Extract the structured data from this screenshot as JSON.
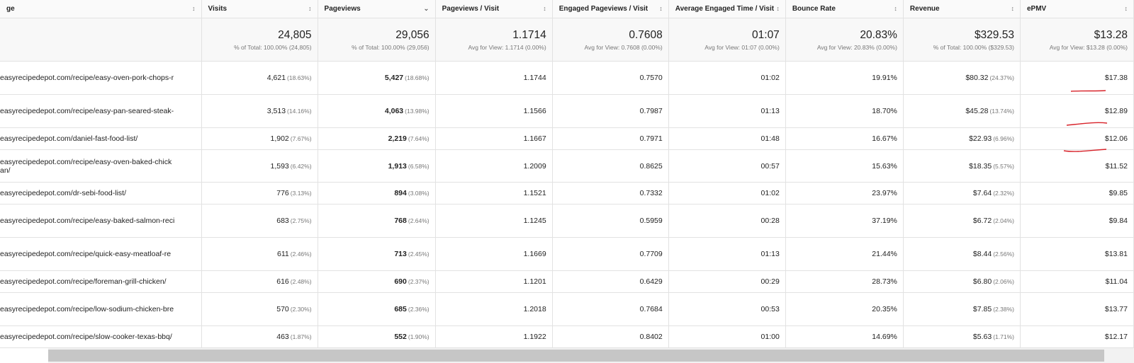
{
  "columns": [
    {
      "label": "ge",
      "sort": "unsorted"
    },
    {
      "label": "Visits",
      "sort": "unsorted"
    },
    {
      "label": "Pageviews",
      "sort": "descending"
    },
    {
      "label": "Pageviews / Visit",
      "sort": "unsorted"
    },
    {
      "label": "Engaged Pageviews / Visit",
      "sort": "unsorted"
    },
    {
      "label": "Average Engaged Time / Visit",
      "sort": "unsorted"
    },
    {
      "label": "Bounce Rate",
      "sort": "unsorted"
    },
    {
      "label": "Revenue",
      "sort": "unsorted"
    },
    {
      "label": "ePMV",
      "sort": "unsorted"
    }
  ],
  "summary": [
    {
      "value": "24,805",
      "sub": "% of Total: 100.00% (24,805)"
    },
    {
      "value": "29,056",
      "sub": "% of Total: 100.00% (29,056)"
    },
    {
      "value": "1.1714",
      "sub": "Avg for View: 1.1714 (0.00%)"
    },
    {
      "value": "0.7608",
      "sub": "Avg for View: 0.7608 (0.00%)"
    },
    {
      "value": "01:07",
      "sub": "Avg for View: 01:07 (0.00%)"
    },
    {
      "value": "20.83%",
      "sub": "Avg for View: 20.83% (0.00%)"
    },
    {
      "value": "$329.53",
      "sub": "% of Total: 100.00% ($329.53)"
    },
    {
      "value": "$13.28",
      "sub": "Avg for View: $13.28 (0.00%)"
    }
  ],
  "rows": [
    {
      "page": "easyrecipedepot.com/recipe/easy-oven-pork-chops-r",
      "visits": "4,621",
      "visits_pct": "(18.63%)",
      "pageviews": "5,427",
      "pageviews_pct": "(18.68%)",
      "ppv": "1.1744",
      "eppv": "0.7570",
      "time": "01:02",
      "bounce": "19.91%",
      "revenue": "$80.32",
      "revenue_pct": "(24.37%)",
      "epmv": "$17.38"
    },
    {
      "page": "easyrecipedepot.com/recipe/easy-pan-seared-steak-",
      "visits": "3,513",
      "visits_pct": "(14.16%)",
      "pageviews": "4,063",
      "pageviews_pct": "(13.98%)",
      "ppv": "1.1566",
      "eppv": "0.7987",
      "time": "01:13",
      "bounce": "18.70%",
      "revenue": "$45.28",
      "revenue_pct": "(13.74%)",
      "epmv": "$12.89"
    },
    {
      "page": "easyrecipedepot.com/daniel-fast-food-list/",
      "visits": "1,902",
      "visits_pct": "(7.67%)",
      "pageviews": "2,219",
      "pageviews_pct": "(7.64%)",
      "ppv": "1.1667",
      "eppv": "0.7971",
      "time": "01:48",
      "bounce": "16.67%",
      "revenue": "$22.93",
      "revenue_pct": "(6.96%)",
      "epmv": "$12.06"
    },
    {
      "page": "easyrecipedepot.com/recipe/easy-oven-baked-chick\nan/",
      "visits": "1,593",
      "visits_pct": "(6.42%)",
      "pageviews": "1,913",
      "pageviews_pct": "(6.58%)",
      "ppv": "1.2009",
      "eppv": "0.8625",
      "time": "00:57",
      "bounce": "15.63%",
      "revenue": "$18.35",
      "revenue_pct": "(5.57%)",
      "epmv": "$11.52"
    },
    {
      "page": "easyrecipedepot.com/dr-sebi-food-list/",
      "visits": "776",
      "visits_pct": "(3.13%)",
      "pageviews": "894",
      "pageviews_pct": "(3.08%)",
      "ppv": "1.1521",
      "eppv": "0.7332",
      "time": "01:02",
      "bounce": "23.97%",
      "revenue": "$7.64",
      "revenue_pct": "(2.32%)",
      "epmv": "$9.85"
    },
    {
      "page": "easyrecipedepot.com/recipe/easy-baked-salmon-reci",
      "visits": "683",
      "visits_pct": "(2.75%)",
      "pageviews": "768",
      "pageviews_pct": "(2.64%)",
      "ppv": "1.1245",
      "eppv": "0.5959",
      "time": "00:28",
      "bounce": "37.19%",
      "revenue": "$6.72",
      "revenue_pct": "(2.04%)",
      "epmv": "$9.84"
    },
    {
      "page": "easyrecipedepot.com/recipe/quick-easy-meatloaf-re",
      "visits": "611",
      "visits_pct": "(2.46%)",
      "pageviews": "713",
      "pageviews_pct": "(2.45%)",
      "ppv": "1.1669",
      "eppv": "0.7709",
      "time": "01:13",
      "bounce": "21.44%",
      "revenue": "$8.44",
      "revenue_pct": "(2.56%)",
      "epmv": "$13.81"
    },
    {
      "page": "easyrecipedepot.com/recipe/foreman-grill-chicken/",
      "visits": "616",
      "visits_pct": "(2.48%)",
      "pageviews": "690",
      "pageviews_pct": "(2.37%)",
      "ppv": "1.1201",
      "eppv": "0.6429",
      "time": "00:29",
      "bounce": "28.73%",
      "revenue": "$6.80",
      "revenue_pct": "(2.06%)",
      "epmv": "$11.04"
    },
    {
      "page": "easyrecipedepot.com/recipe/low-sodium-chicken-bre",
      "visits": "570",
      "visits_pct": "(2.30%)",
      "pageviews": "685",
      "pageviews_pct": "(2.36%)",
      "ppv": "1.2018",
      "eppv": "0.7684",
      "time": "00:53",
      "bounce": "20.35%",
      "revenue": "$7.85",
      "revenue_pct": "(2.38%)",
      "epmv": "$13.77"
    },
    {
      "page": "easyrecipedepot.com/recipe/slow-cooker-texas-bbq/",
      "visits": "463",
      "visits_pct": "(1.87%)",
      "pageviews": "552",
      "pageviews_pct": "(1.90%)",
      "ppv": "1.1922",
      "eppv": "0.8402",
      "time": "01:00",
      "bounce": "14.69%",
      "revenue": "$5.63",
      "revenue_pct": "(1.71%)",
      "epmv": "$12.17"
    }
  ],
  "annotation_color": "#d8232a"
}
